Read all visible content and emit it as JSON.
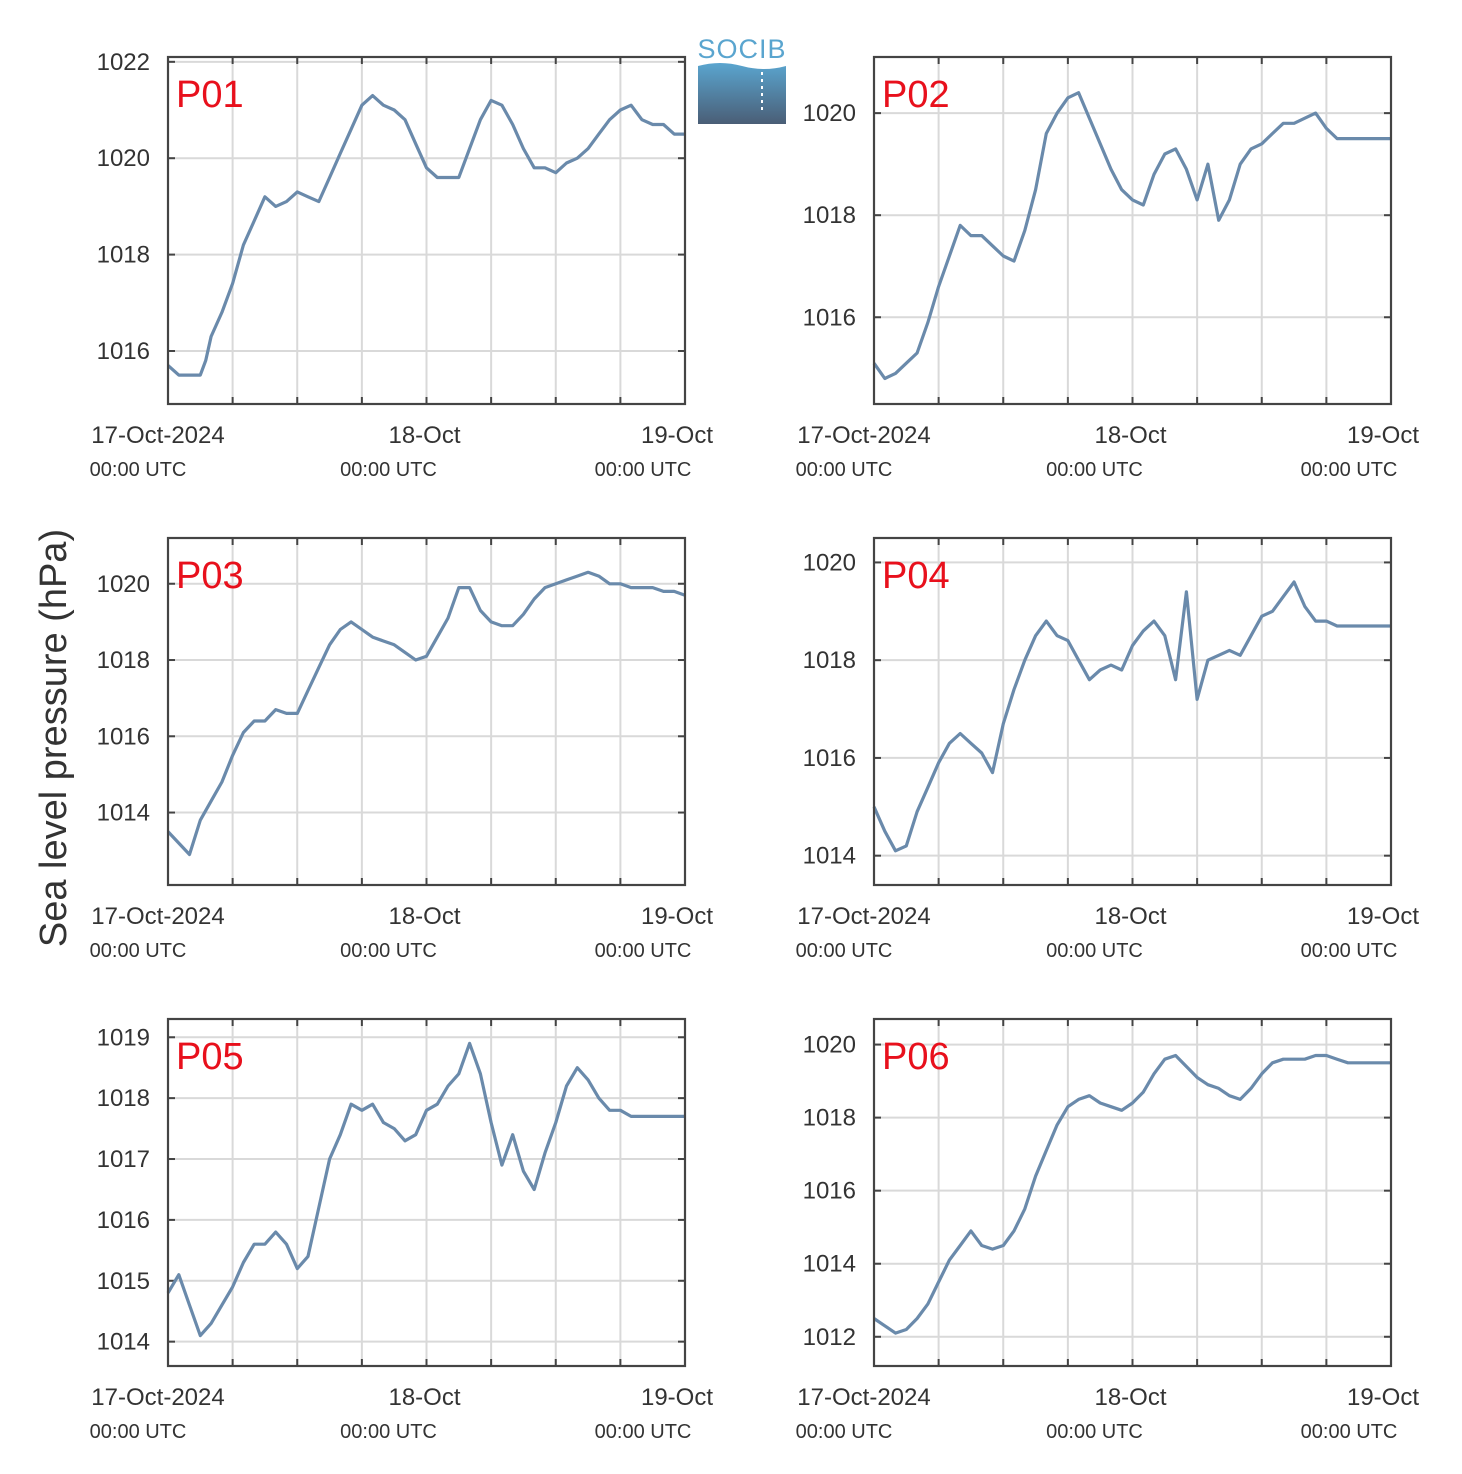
{
  "colors": {
    "series": "#6a8aab",
    "label": "#e8101c",
    "grid": "#d9d9d9",
    "axis": "#444444",
    "logo_top": "#5aa5cf",
    "logo_bottom": "#4a5e76"
  },
  "logo": {
    "text": "SOCIB"
  },
  "ylabel": "Sea level pressure (hPa)",
  "chart_data": [
    {
      "type": "line",
      "title": "P01",
      "xlim": [
        0,
        48
      ],
      "ylim": [
        1014.9,
        1022.1
      ],
      "yticks": [
        1016,
        1018,
        1020,
        1022
      ],
      "xtick_labels": [
        {
          "x": 0,
          "date": "17-Oct-2024",
          "time": "00:00 UTC"
        },
        {
          "x": 24,
          "date": "18-Oct",
          "time": "00:00 UTC"
        },
        {
          "x": 48,
          "date": "19-Oct",
          "time": "00:00 UTC"
        }
      ],
      "x": [
        0,
        1,
        2,
        3,
        3.5,
        4,
        5,
        6,
        7,
        8,
        9,
        10,
        11,
        12,
        13,
        14,
        15,
        16,
        17,
        18,
        19,
        20,
        21,
        22,
        23,
        24,
        25,
        26,
        27,
        28,
        29,
        30,
        31,
        32,
        33,
        34,
        35,
        36,
        37,
        38,
        39,
        40,
        41,
        42,
        43,
        44,
        45,
        46,
        47,
        48
      ],
      "y": [
        1015.7,
        1015.5,
        1015.5,
        1015.5,
        1015.8,
        1016.3,
        1016.8,
        1017.4,
        1018.2,
        1018.7,
        1019.2,
        1019.0,
        1019.1,
        1019.3,
        1019.2,
        1019.1,
        1019.6,
        1020.1,
        1020.6,
        1021.1,
        1021.3,
        1021.1,
        1021.0,
        1020.8,
        1020.3,
        1019.8,
        1019.6,
        1019.6,
        1019.6,
        1020.2,
        1020.8,
        1021.2,
        1021.1,
        1020.7,
        1020.2,
        1019.8,
        1019.8,
        1019.7,
        1019.9,
        1020.0,
        1020.2,
        1020.5,
        1020.8,
        1021.0,
        1021.1,
        1020.8,
        1020.7,
        1020.7,
        1020.5,
        1020.5
      ]
    },
    {
      "type": "line",
      "title": "P02",
      "xlim": [
        0,
        48
      ],
      "ylim": [
        1014.3,
        1021.1
      ],
      "yticks": [
        1016,
        1018,
        1020
      ],
      "xtick_labels": [
        {
          "x": 0,
          "date": "17-Oct-2024",
          "time": "00:00 UTC"
        },
        {
          "x": 24,
          "date": "18-Oct",
          "time": "00:00 UTC"
        },
        {
          "x": 48,
          "date": "19-Oct",
          "time": "00:00 UTC"
        }
      ],
      "x": [
        0,
        1,
        2,
        3,
        4,
        5,
        6,
        7,
        8,
        9,
        10,
        11,
        12,
        13,
        14,
        15,
        16,
        17,
        18,
        19,
        20,
        21,
        22,
        23,
        24,
        25,
        26,
        27,
        28,
        29,
        30,
        31,
        32,
        33,
        34,
        35,
        36,
        37,
        38,
        39,
        40,
        41,
        42,
        43,
        44,
        45,
        46,
        47,
        48
      ],
      "y": [
        1015.1,
        1014.8,
        1014.9,
        1015.1,
        1015.3,
        1015.9,
        1016.6,
        1017.2,
        1017.8,
        1017.6,
        1017.6,
        1017.4,
        1017.2,
        1017.1,
        1017.7,
        1018.5,
        1019.6,
        1020.0,
        1020.3,
        1020.4,
        1019.9,
        1019.4,
        1018.9,
        1018.5,
        1018.3,
        1018.2,
        1018.8,
        1019.2,
        1019.3,
        1018.9,
        1018.3,
        1019.0,
        1017.9,
        1018.3,
        1019.0,
        1019.3,
        1019.4,
        1019.6,
        1019.8,
        1019.8,
        1019.9,
        1020.0,
        1019.7,
        1019.5,
        1019.5,
        1019.5,
        1019.5,
        1019.5,
        1019.5
      ]
    },
    {
      "type": "line",
      "title": "P03",
      "xlim": [
        0,
        48
      ],
      "ylim": [
        1012.1,
        1021.2
      ],
      "yticks": [
        1014,
        1016,
        1018,
        1020
      ],
      "xtick_labels": [
        {
          "x": 0,
          "date": "17-Oct-2024",
          "time": "00:00 UTC"
        },
        {
          "x": 24,
          "date": "18-Oct",
          "time": "00:00 UTC"
        },
        {
          "x": 48,
          "date": "19-Oct",
          "time": "00:00 UTC"
        }
      ],
      "x": [
        0,
        1,
        2,
        3,
        4,
        5,
        6,
        7,
        8,
        9,
        10,
        11,
        12,
        13,
        14,
        15,
        16,
        17,
        18,
        19,
        20,
        21,
        22,
        23,
        24,
        25,
        26,
        27,
        28,
        29,
        30,
        31,
        32,
        33,
        34,
        35,
        36,
        37,
        38,
        39,
        40,
        41,
        42,
        43,
        44,
        45,
        46,
        47,
        48
      ],
      "y": [
        1013.5,
        1013.2,
        1012.9,
        1013.8,
        1014.3,
        1014.8,
        1015.5,
        1016.1,
        1016.4,
        1016.4,
        1016.7,
        1016.6,
        1016.6,
        1017.2,
        1017.8,
        1018.4,
        1018.8,
        1019.0,
        1018.8,
        1018.6,
        1018.5,
        1018.4,
        1018.2,
        1018.0,
        1018.1,
        1018.6,
        1019.1,
        1019.9,
        1019.9,
        1019.3,
        1019.0,
        1018.9,
        1018.9,
        1019.2,
        1019.6,
        1019.9,
        1020.0,
        1020.1,
        1020.2,
        1020.3,
        1020.2,
        1020.0,
        1020.0,
        1019.9,
        1019.9,
        1019.9,
        1019.8,
        1019.8,
        1019.7
      ]
    },
    {
      "type": "line",
      "title": "P04",
      "xlim": [
        0,
        48
      ],
      "ylim": [
        1013.4,
        1020.5
      ],
      "yticks": [
        1014,
        1016,
        1018,
        1020
      ],
      "xtick_labels": [
        {
          "x": 0,
          "date": "17-Oct-2024",
          "time": "00:00 UTC"
        },
        {
          "x": 24,
          "date": "18-Oct",
          "time": "00:00 UTC"
        },
        {
          "x": 48,
          "date": "19-Oct",
          "time": "00:00 UTC"
        }
      ],
      "x": [
        0,
        1,
        2,
        3,
        4,
        5,
        6,
        7,
        8,
        9,
        10,
        11,
        12,
        13,
        14,
        15,
        16,
        17,
        18,
        19,
        20,
        21,
        22,
        23,
        24,
        25,
        26,
        27,
        28,
        29,
        30,
        31,
        32,
        33,
        34,
        35,
        36,
        37,
        38,
        39,
        40,
        41,
        42,
        43,
        44,
        45,
        46,
        47,
        48
      ],
      "y": [
        1015.0,
        1014.5,
        1014.1,
        1014.2,
        1014.9,
        1015.4,
        1015.9,
        1016.3,
        1016.5,
        1016.3,
        1016.1,
        1015.7,
        1016.7,
        1017.4,
        1018.0,
        1018.5,
        1018.8,
        1018.5,
        1018.4,
        1018.0,
        1017.6,
        1017.8,
        1017.9,
        1017.8,
        1018.3,
        1018.6,
        1018.8,
        1018.5,
        1017.6,
        1019.4,
        1017.2,
        1018.0,
        1018.1,
        1018.2,
        1018.1,
        1018.5,
        1018.9,
        1019.0,
        1019.3,
        1019.6,
        1019.1,
        1018.8,
        1018.8,
        1018.7,
        1018.7,
        1018.7,
        1018.7,
        1018.7,
        1018.7
      ]
    },
    {
      "type": "line",
      "title": "P05",
      "xlim": [
        0,
        48
      ],
      "ylim": [
        1013.6,
        1019.3
      ],
      "yticks": [
        1014,
        1015,
        1016,
        1017,
        1018,
        1019
      ],
      "xtick_labels": [
        {
          "x": 0,
          "date": "17-Oct-2024",
          "time": "00:00 UTC"
        },
        {
          "x": 24,
          "date": "18-Oct",
          "time": "00:00 UTC"
        },
        {
          "x": 48,
          "date": "19-Oct",
          "time": "00:00 UTC"
        }
      ],
      "x": [
        0,
        1,
        2,
        3,
        4,
        5,
        6,
        7,
        8,
        9,
        10,
        11,
        12,
        13,
        14,
        15,
        16,
        17,
        18,
        19,
        20,
        21,
        22,
        23,
        24,
        25,
        26,
        27,
        28,
        29,
        30,
        31,
        32,
        33,
        34,
        35,
        36,
        37,
        38,
        39,
        40,
        41,
        42,
        43,
        44,
        45,
        46,
        47,
        48
      ],
      "y": [
        1014.8,
        1015.1,
        1014.6,
        1014.1,
        1014.3,
        1014.6,
        1014.9,
        1015.3,
        1015.6,
        1015.6,
        1015.8,
        1015.6,
        1015.2,
        1015.4,
        1016.2,
        1017.0,
        1017.4,
        1017.9,
        1017.8,
        1017.9,
        1017.6,
        1017.5,
        1017.3,
        1017.4,
        1017.8,
        1017.9,
        1018.2,
        1018.4,
        1018.9,
        1018.4,
        1017.6,
        1016.9,
        1017.4,
        1016.8,
        1016.5,
        1017.1,
        1017.6,
        1018.2,
        1018.5,
        1018.3,
        1018.0,
        1017.8,
        1017.8,
        1017.7,
        1017.7,
        1017.7,
        1017.7,
        1017.7,
        1017.7
      ]
    },
    {
      "type": "line",
      "title": "P06",
      "xlim": [
        0,
        48
      ],
      "ylim": [
        1011.2,
        1020.7
      ],
      "yticks": [
        1012,
        1014,
        1016,
        1018,
        1020
      ],
      "xtick_labels": [
        {
          "x": 0,
          "date": "17-Oct-2024",
          "time": "00:00 UTC"
        },
        {
          "x": 24,
          "date": "18-Oct",
          "time": "00:00 UTC"
        },
        {
          "x": 48,
          "date": "19-Oct",
          "time": "00:00 UTC"
        }
      ],
      "x": [
        0,
        1,
        2,
        3,
        4,
        5,
        6,
        7,
        8,
        9,
        10,
        11,
        12,
        13,
        14,
        15,
        16,
        17,
        18,
        19,
        20,
        21,
        22,
        23,
        24,
        25,
        26,
        27,
        28,
        29,
        30,
        31,
        32,
        33,
        34,
        35,
        36,
        37,
        38,
        39,
        40,
        41,
        42,
        43,
        44,
        45,
        46,
        47,
        48
      ],
      "y": [
        1012.5,
        1012.3,
        1012.1,
        1012.2,
        1012.5,
        1012.9,
        1013.5,
        1014.1,
        1014.5,
        1014.9,
        1014.5,
        1014.4,
        1014.5,
        1014.9,
        1015.5,
        1016.4,
        1017.1,
        1017.8,
        1018.3,
        1018.5,
        1018.6,
        1018.4,
        1018.3,
        1018.2,
        1018.4,
        1018.7,
        1019.2,
        1019.6,
        1019.7,
        1019.4,
        1019.1,
        1018.9,
        1018.8,
        1018.6,
        1018.5,
        1018.8,
        1019.2,
        1019.5,
        1019.6,
        1019.6,
        1019.6,
        1019.7,
        1019.7,
        1019.6,
        1019.5,
        1019.5,
        1019.5,
        1019.5,
        1019.5
      ]
    }
  ]
}
